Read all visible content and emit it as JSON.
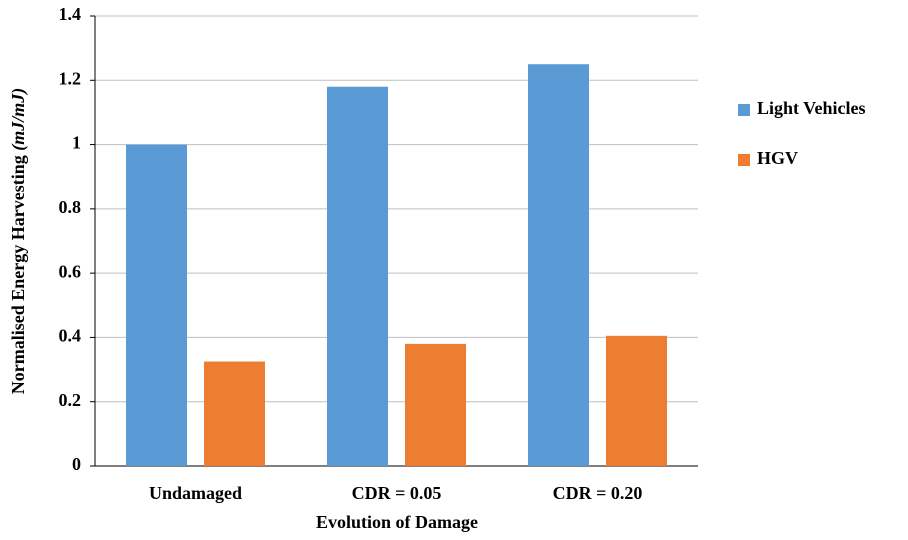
{
  "chart_data": {
    "type": "bar",
    "xlabel": "Evolution of Damage",
    "ylabel": "Normalised Energy Harvesting",
    "ylabel_unit": "(mJ/mJ)",
    "categories": [
      "Undamaged",
      "CDR = 0.05",
      "CDR = 0.20"
    ],
    "series": [
      {
        "name": "Light Vehicles",
        "color": "#5b9bd5",
        "values": [
          1.0,
          1.18,
          1.25
        ]
      },
      {
        "name": "HGV",
        "color": "#ed7d31",
        "values": [
          0.325,
          0.38,
          0.405
        ]
      }
    ],
    "ylim": [
      0,
      1.4
    ],
    "yticks": [
      0,
      0.2,
      0.4,
      0.6,
      0.8,
      1,
      1.2,
      1.4
    ],
    "grid": true,
    "legend": "right"
  }
}
